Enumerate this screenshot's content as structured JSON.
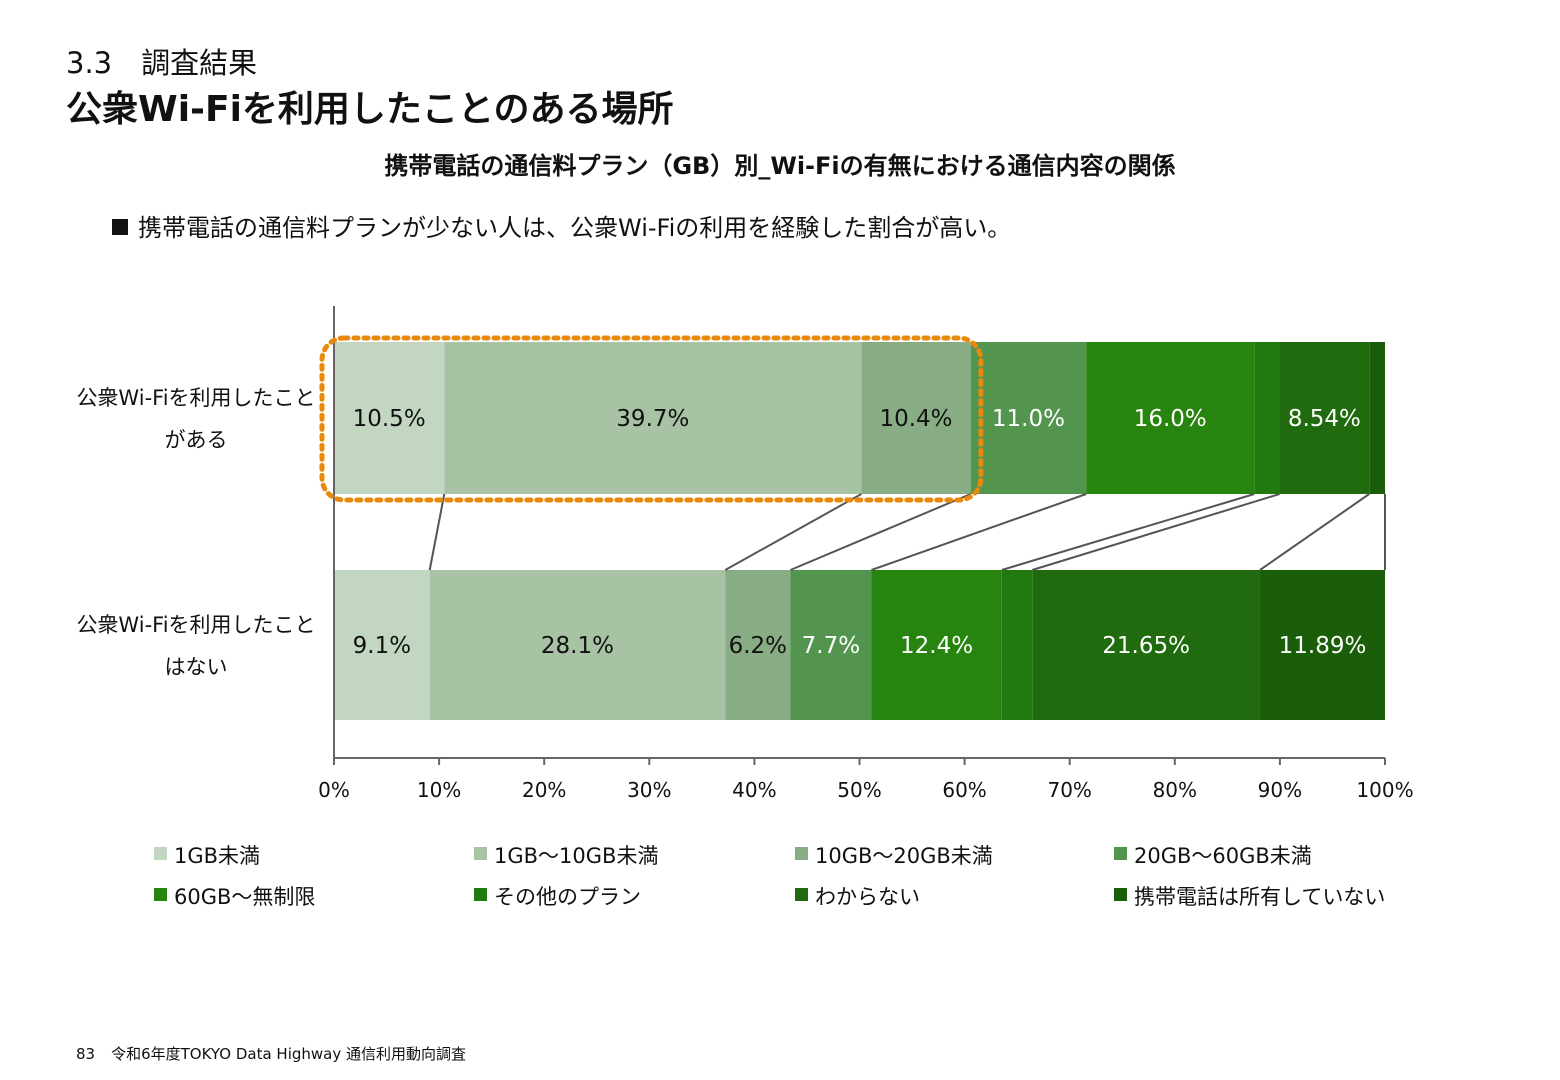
{
  "header": {
    "section_number": "3.3　調査結果",
    "title": "公衆Wi-Fiを利用したことのある場所"
  },
  "chart_title": "携帯電話の通信料プラン（GB）別_Wi-Fiの有無における通信内容の関係",
  "bullet": {
    "text": "携帯電話の通信料プランが少ない人は、公衆Wi-Fiの利用を経験した割合が高い。"
  },
  "chart_data": {
    "type": "bar",
    "orientation": "horizontal",
    "stacked": "100%",
    "categories": [
      [
        "公衆Wi-Fiを利用したこと",
        "がある"
      ],
      [
        "公衆Wi-Fiを利用したこと",
        "はない"
      ]
    ],
    "series": [
      {
        "name": "1GB未満",
        "color": "#c3d6c1",
        "values": [
          10.5,
          9.1
        ],
        "labels": [
          "10.5%",
          "9.1%"
        ],
        "label_color": "#111111"
      },
      {
        "name": "1GB〜10GB未満",
        "color": "#a8c2a4",
        "values": [
          39.7,
          28.1
        ],
        "labels": [
          "39.7%",
          "28.1%"
        ],
        "label_color": "#111111"
      },
      {
        "name": "10GB〜20GB未満",
        "color": "#88ad84",
        "values": [
          10.4,
          6.2
        ],
        "labels": [
          "10.4%",
          "6.2%"
        ],
        "label_color": "#111111"
      },
      {
        "name": "20GB〜60GB未満",
        "color": "#53944f",
        "values": [
          11.0,
          7.7
        ],
        "labels": [
          "11.0%",
          "7.7%"
        ],
        "label_color": "#ffffff"
      },
      {
        "name": "60GB〜無制限",
        "color": "#27840f",
        "values": [
          16.0,
          12.4
        ],
        "labels": [
          "16.0%",
          "12.4%"
        ],
        "label_color": "#ffffff"
      },
      {
        "name": "その他のプラン",
        "color": "#217a0f",
        "values": [
          2.4,
          2.9
        ],
        "labels": [
          "",
          ""
        ],
        "label_color": "#ffffff"
      },
      {
        "name": "わからない",
        "color": "#1f6b0d",
        "values": [
          8.54,
          21.65
        ],
        "labels": [
          "8.54%",
          "21.65%"
        ],
        "label_color": "#ffffff"
      },
      {
        "name": "携帯電話は所有していない",
        "color": "#1a5e0a",
        "values": [
          1.5,
          11.89
        ],
        "labels": [
          "",
          "11.89%"
        ],
        "label_color": "#ffffff"
      }
    ],
    "x_ticks": [
      "0%",
      "10%",
      "20%",
      "30%",
      "40%",
      "50%",
      "60%",
      "70%",
      "80%",
      "90%",
      "100%"
    ],
    "xlim": [
      0,
      100
    ],
    "highlight": {
      "category_index": 0,
      "from": 0,
      "to": 60.6,
      "color": "#e8890c",
      "style": "dotted"
    },
    "connector_lines": true,
    "legend_position": "bottom",
    "grid": false
  },
  "footer": {
    "page_number": "83",
    "text": "令和6年度TOKYO Data Highway 通信利用動向調査"
  }
}
